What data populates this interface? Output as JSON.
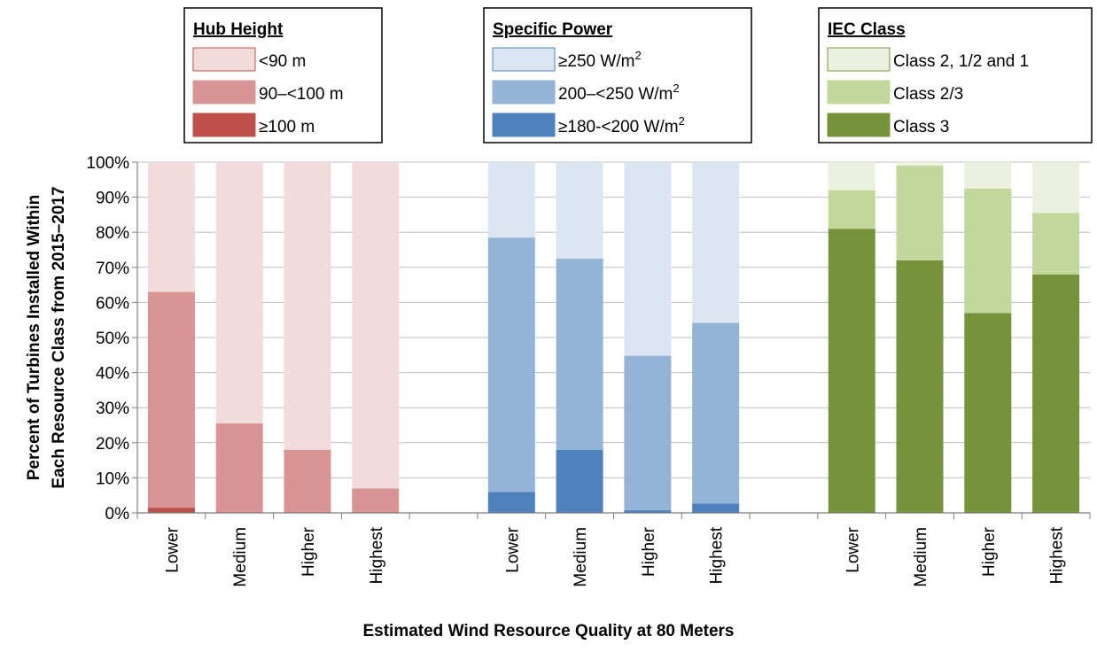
{
  "chart_data": {
    "type": "bar",
    "stacked": true,
    "xlabel": "Estimated Wind Resource Quality at 80 Meters",
    "ylabel_lines": [
      "Percent of Turbines Installed Within",
      "Each Resource Class from 2015–2017"
    ],
    "ylim": [
      0,
      100
    ],
    "yticks": [
      "0%",
      "10%",
      "20%",
      "30%",
      "40%",
      "50%",
      "60%",
      "70%",
      "80%",
      "90%",
      "100%"
    ],
    "grid": true,
    "groups": [
      {
        "legend_title": "Hub Height",
        "categories": [
          "Lower",
          "Medium",
          "Higher",
          "Highest"
        ],
        "series": [
          {
            "name": "≥100 m",
            "color": "#c0504d",
            "values": [
              1.5,
              0,
              0,
              0
            ]
          },
          {
            "name": "90–<100 m",
            "color": "#d99594",
            "values": [
              61.5,
              25.5,
              18,
              7
            ]
          },
          {
            "name": "<90 m",
            "color": "#f2dcdb",
            "values": [
              37,
              74.5,
              82,
              93
            ]
          }
        ],
        "legend_order": [
          2,
          1,
          0
        ]
      },
      {
        "legend_title": "Specific Power",
        "categories": [
          "Lower",
          "Medium",
          "Higher",
          "Highest"
        ],
        "series": [
          {
            "name": "≥180-<200 W/m2",
            "label_base": "≥180-<200 W/m",
            "label_sup": "2",
            "color": "#4f81bd",
            "values": [
              6,
              18,
              0.8,
              2.7
            ]
          },
          {
            "name": "200–<250 W/m2",
            "label_base": "200–<250 W/m",
            "label_sup": "2",
            "color": "#95b3d7",
            "values": [
              72.5,
              54.5,
              44,
              51.5
            ]
          },
          {
            "name": "≥250 W/m2",
            "label_base": "≥250 W/m",
            "label_sup": "2",
            "color": "#dce6f2",
            "values": [
              21.5,
              27.5,
              55.2,
              45.8
            ]
          }
        ],
        "legend_order": [
          2,
          1,
          0
        ]
      },
      {
        "legend_title": "IEC Class",
        "categories": [
          "Lower",
          "Medium",
          "Higher",
          "Highest"
        ],
        "series": [
          {
            "name": "Class 3",
            "color": "#76933c",
            "values": [
              81,
              72,
              57,
              68
            ]
          },
          {
            "name": "Class 2/3",
            "color": "#c3d69b",
            "values": [
              11,
              27,
              35.5,
              17.5
            ]
          },
          {
            "name": "Class 2, 1/2 and 1",
            "color": "#ebf1de",
            "values": [
              8,
              1,
              7.5,
              14.5
            ]
          }
        ],
        "legend_order": [
          2,
          1,
          0
        ]
      }
    ]
  }
}
